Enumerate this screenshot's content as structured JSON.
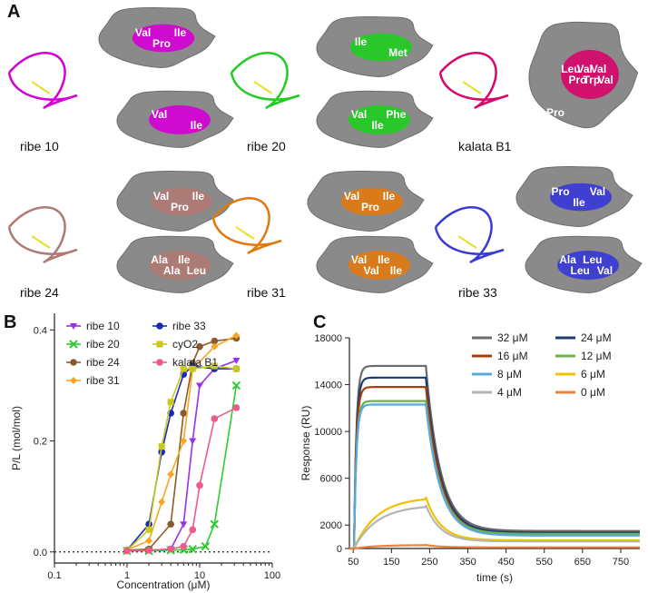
{
  "panels": {
    "a": "A",
    "b": "B",
    "c": "C"
  },
  "panel_a": {
    "molecules": [
      {
        "name": "ribe 10",
        "color": "#d400d4",
        "residues_top": [
          "Val",
          "Pro",
          "Ile"
        ],
        "residues_bottom": [
          "Val",
          "Ile"
        ]
      },
      {
        "name": "ribe 20",
        "color": "#22cc22",
        "residues_top": [
          "Ile",
          "Met"
        ],
        "residues_bottom": [
          "Val",
          "Ile",
          "Phe"
        ]
      },
      {
        "name": "kalata B1",
        "color": "#d6086b",
        "residues_top": [
          "Leu",
          "Pro",
          "Val",
          "Trp",
          "Val",
          "Val"
        ],
        "residues_bottom": [
          "Pro"
        ]
      },
      {
        "name": "ribe 24",
        "color": "#b07a74",
        "residues_top": [
          "Val",
          "Pro",
          "Ile"
        ],
        "residues_bottom": [
          "Ala",
          "Ala",
          "Ile",
          "Leu"
        ]
      },
      {
        "name": "ribe 31",
        "color": "#e07a10",
        "residues_top": [
          "Val",
          "Pro",
          "Ile"
        ],
        "residues_bottom": [
          "Val",
          "Val",
          "Ile",
          "Ile"
        ]
      },
      {
        "name": "ribe 33",
        "color": "#3a3ad6",
        "residues_top": [
          "Pro",
          "Ile",
          "Val"
        ],
        "residues_bottom": [
          "Ala",
          "Leu",
          "Leu",
          "Val"
        ]
      }
    ]
  },
  "chart_data": [
    {
      "type": "scatter",
      "panel": "B",
      "xlabel": "Concentration (μM)",
      "ylabel": "P/L (mol/mol)",
      "xscale": "log",
      "xlim": [
        0.1,
        100
      ],
      "ylim": [
        -0.02,
        0.43
      ],
      "xticks": [
        "0.1",
        "1",
        "10",
        "100"
      ],
      "yticks": [
        "0.0",
        "0.2",
        "0.4"
      ],
      "legend_position": "top-left",
      "series": [
        {
          "name": "ribe 10",
          "color": "#9b30e6",
          "marker": "triangle-down",
          "x": [
            1,
            2,
            4,
            6,
            8,
            10,
            16,
            32
          ],
          "y": [
            0.002,
            0.003,
            0.005,
            0.05,
            0.2,
            0.3,
            0.33,
            0.345
          ]
        },
        {
          "name": "ribe 20",
          "color": "#2ecc2e",
          "marker": "x",
          "x": [
            1,
            2,
            4,
            6,
            8,
            12,
            16,
            32
          ],
          "y": [
            0.002,
            0.002,
            0.003,
            0.004,
            0.005,
            0.01,
            0.05,
            0.3
          ]
        },
        {
          "name": "ribe 24",
          "color": "#8b5a2b",
          "marker": "circle",
          "x": [
            1,
            2,
            4,
            6,
            8,
            10,
            16,
            32
          ],
          "y": [
            0.003,
            0.005,
            0.05,
            0.25,
            0.34,
            0.37,
            0.38,
            0.385
          ]
        },
        {
          "name": "ribe 31",
          "color": "#f5a623",
          "marker": "diamond",
          "x": [
            1,
            2,
            3,
            4,
            6,
            8,
            16,
            32
          ],
          "y": [
            0.004,
            0.02,
            0.09,
            0.14,
            0.2,
            0.33,
            0.37,
            0.39
          ]
        },
        {
          "name": "ribe 33",
          "color": "#1a2ab8",
          "marker": "circle",
          "x": [
            1,
            2,
            3,
            4,
            6,
            8,
            16,
            32
          ],
          "y": [
            0.003,
            0.05,
            0.18,
            0.25,
            0.32,
            0.335,
            0.33,
            0.33
          ]
        },
        {
          "name": "cyO2",
          "color": "#c8c820",
          "marker": "square",
          "x": [
            1,
            2,
            3,
            4,
            6,
            8,
            16,
            32
          ],
          "y": [
            0.003,
            0.04,
            0.19,
            0.27,
            0.33,
            0.33,
            0.335,
            0.33
          ]
        },
        {
          "name": "kalata B1",
          "color": "#ee5a8a",
          "marker": "circle",
          "x": [
            1,
            2,
            4,
            6,
            8,
            10,
            16,
            32
          ],
          "y": [
            0.002,
            0.003,
            0.005,
            0.01,
            0.04,
            0.12,
            0.24,
            0.26
          ]
        }
      ]
    },
    {
      "type": "line",
      "panel": "C",
      "xlabel": "time (s)",
      "ylabel": "Response (RU)",
      "xlim": [
        40,
        800
      ],
      "ylim": [
        0,
        18000
      ],
      "xticks": [
        "50",
        "150",
        "250",
        "350",
        "450",
        "550",
        "650",
        "750"
      ],
      "yticks": [
        "0",
        "2000",
        "6000",
        "10000",
        "14000",
        "18000"
      ],
      "legend_position": "top-right",
      "injection_start": 60,
      "injection_end": 240,
      "series": [
        {
          "name": "32 μM",
          "color": "#6b6b6b",
          "plateau": 15600,
          "final": 1500
        },
        {
          "name": "24 μM",
          "color": "#1f3a6e",
          "plateau": 14600,
          "final": 1350
        },
        {
          "name": "16 μM",
          "color": "#a83c0a",
          "plateau": 13800,
          "final": 1200
        },
        {
          "name": "12 μM",
          "color": "#6ab04c",
          "plateau": 12600,
          "final": 1250
        },
        {
          "name": "8 μM",
          "color": "#5aa7e0",
          "plateau": 12300,
          "final": 1100
        },
        {
          "name": "6 μM",
          "color": "#f2c200",
          "plateau": 4400,
          "final": 700
        },
        {
          "name": "4 μM",
          "color": "#b5b5b5",
          "plateau": 3700,
          "final": 600
        },
        {
          "name": "0 μM",
          "color": "#f08040",
          "plateau": 300,
          "final": 100
        }
      ]
    }
  ]
}
